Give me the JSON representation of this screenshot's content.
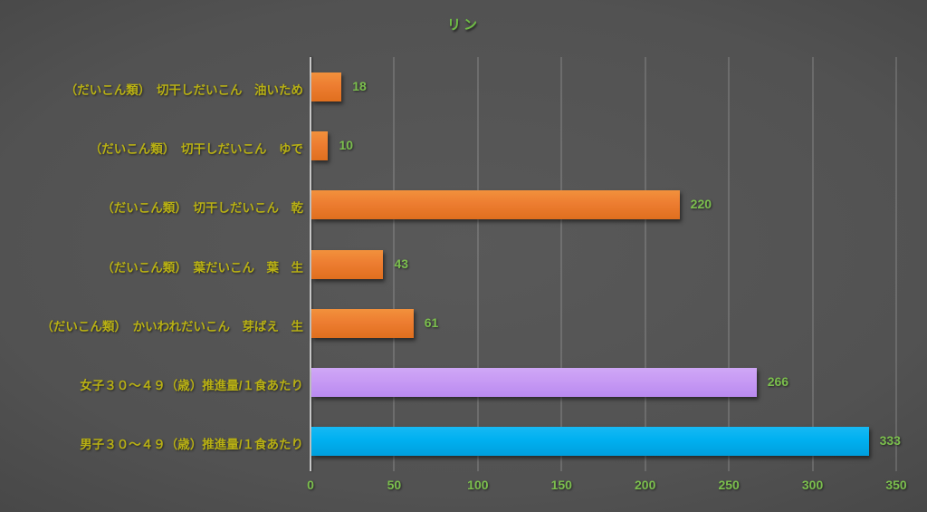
{
  "title": "リン",
  "colors": {
    "background_center": "#595959",
    "background_edge": "#252525",
    "title_text": "#6fbf44",
    "category_text": "#b8b014",
    "value_text": "#7bbf4d",
    "tick_text": "#7bbf4d",
    "axis_line": "#c6c6c6",
    "gridline": "#6f6f6f",
    "bar_orange": "#ed7d31",
    "bar_purple": "#c79af4",
    "bar_cyan": "#00b0f0"
  },
  "chart_data": {
    "type": "bar",
    "orientation": "horizontal",
    "title": "リン",
    "categories": [
      "（だいこん類）　切干しだいこん　油いため",
      "（だいこん類）　切干しだいこん　ゆで",
      "（だいこん類）　切干しだいこん　乾",
      "（だいこん類）　葉だいこん　葉　生",
      "（だいこん類）　かいわれだいこん　芽ばえ　生",
      "女子３０～４９（歳）推進量/１食あたり",
      "男子３０～４９（歳）推進量/１食あたり"
    ],
    "values": [
      18,
      10,
      220,
      43,
      61,
      266,
      333
    ],
    "value_labels": [
      "18",
      "10",
      "220",
      "43",
      "61",
      "266",
      "333"
    ],
    "bar_colors": [
      "orange",
      "orange",
      "orange",
      "orange",
      "orange",
      "purple",
      "cyan"
    ],
    "xlim": [
      0,
      350
    ],
    "xticks": [
      0,
      50,
      100,
      150,
      200,
      250,
      300,
      350
    ],
    "xtick_labels": [
      "0",
      "50",
      "100",
      "150",
      "200",
      "250",
      "300",
      "350"
    ],
    "grid": true,
    "legend": false
  }
}
